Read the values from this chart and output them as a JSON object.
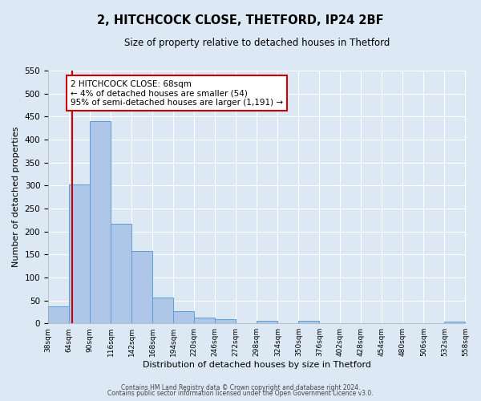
{
  "title": "2, HITCHCOCK CLOSE, THETFORD, IP24 2BF",
  "subtitle": "Size of property relative to detached houses in Thetford",
  "xlabel": "Distribution of detached houses by size in Thetford",
  "ylabel": "Number of detached properties",
  "bin_edges": [
    38,
    64,
    90,
    116,
    142,
    168,
    194,
    220,
    246,
    272,
    298,
    324,
    350,
    376,
    402,
    428,
    454,
    480,
    506,
    532,
    558
  ],
  "bar_heights": [
    37,
    303,
    441,
    216,
    158,
    57,
    26,
    12,
    9,
    0,
    5,
    0,
    5,
    0,
    0,
    0,
    0,
    0,
    0,
    3
  ],
  "bar_color": "#aec6e8",
  "bar_edge_color": "#5a9fd4",
  "background_color": "#dce9f5",
  "grid_color": "#ffffff",
  "vline_x": 68,
  "vline_color": "#cc0000",
  "annotation_text": "2 HITCHCOCK CLOSE: 68sqm\n← 4% of detached houses are smaller (54)\n95% of semi-detached houses are larger (1,191) →",
  "annotation_box_edge_color": "#cc0000",
  "ylim": [
    0,
    550
  ],
  "yticks": [
    0,
    50,
    100,
    150,
    200,
    250,
    300,
    350,
    400,
    450,
    500,
    550
  ],
  "tick_labels": [
    "38sqm",
    "64sqm",
    "90sqm",
    "116sqm",
    "142sqm",
    "168sqm",
    "194sqm",
    "220sqm",
    "246sqm",
    "272sqm",
    "298sqm",
    "324sqm",
    "350sqm",
    "376sqm",
    "402sqm",
    "428sqm",
    "454sqm",
    "480sqm",
    "506sqm",
    "532sqm",
    "558sqm"
  ],
  "footer_line1": "Contains HM Land Registry data © Crown copyright and database right 2024.",
  "footer_line2": "Contains public sector information licensed under the Open Government Licence v3.0."
}
